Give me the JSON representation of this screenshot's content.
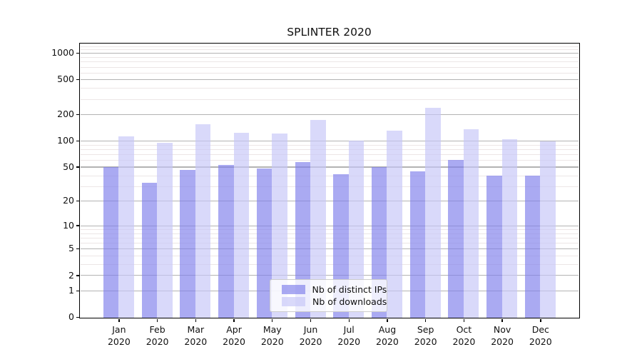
{
  "chart_data": {
    "type": "bar",
    "title": "SPLINTER 2020",
    "categories": [
      "Jan",
      "Feb",
      "Mar",
      "Apr",
      "May",
      "Jun",
      "Jul",
      "Aug",
      "Sep",
      "Oct",
      "Nov",
      "Dec"
    ],
    "year": "2020",
    "series": [
      {
        "name": "Nb of distinct IPs",
        "color": "#a9a9ef",
        "fill": "rgba(126,126,236,0.66)",
        "values": [
          50,
          33,
          46,
          53,
          48,
          57,
          41,
          50,
          45,
          60,
          40,
          40
        ]
      },
      {
        "name": "Nb of downloads",
        "color": "#dadaf9",
        "fill": "rgba(198,198,248,0.66)",
        "values": [
          113,
          95,
          155,
          123,
          122,
          175,
          101,
          132,
          238,
          135,
          105,
          99
        ]
      }
    ],
    "xlabel": "",
    "ylabel": "",
    "yscale": "log1p",
    "ylim": [
      0,
      1273
    ],
    "yticks": [
      0,
      1,
      2,
      5,
      10,
      20,
      50,
      100,
      200,
      500,
      1000
    ],
    "minor_gridlines": [
      3,
      4,
      6,
      7,
      8,
      9,
      30,
      40,
      60,
      70,
      80,
      90,
      300,
      400,
      600,
      700,
      800,
      900,
      1100,
      1200
    ],
    "grid": true,
    "legend_position": "lower center"
  },
  "colors": {
    "background": "#ffffff",
    "spine": "#000000",
    "text": "#111111",
    "major_grid": "#b3b3b3",
    "minor_grid": "#ece6e6",
    "legend_border": "#cccccc"
  }
}
